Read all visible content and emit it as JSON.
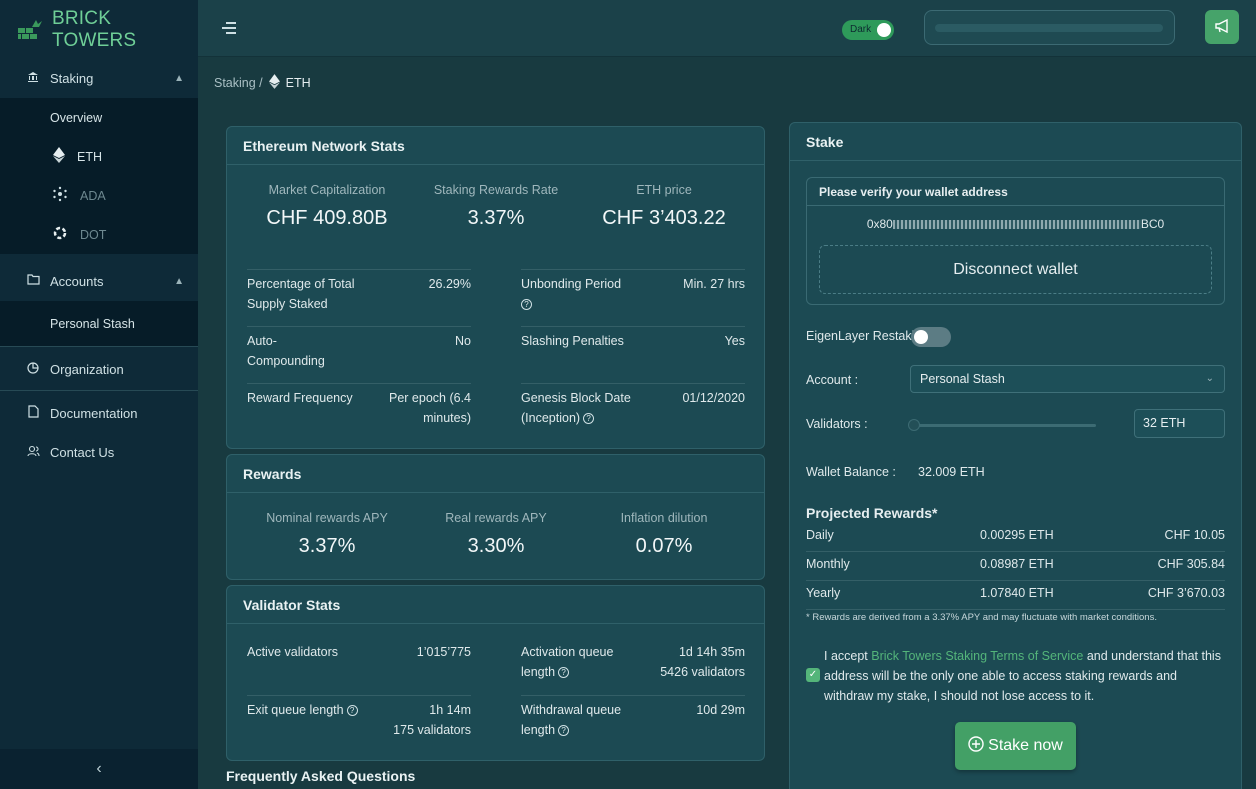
{
  "brand": {
    "name": "BRICK TOWERS"
  },
  "sidebar": {
    "staking": {
      "label": "Staking",
      "items": [
        {
          "label": "Overview"
        },
        {
          "label": "ETH"
        },
        {
          "label": "ADA"
        },
        {
          "label": "DOT"
        }
      ]
    },
    "accounts": {
      "label": "Accounts",
      "items": [
        {
          "label": "Personal Stash"
        }
      ]
    },
    "organization": "Organization",
    "documentation": "Documentation",
    "contact": "Contact Us"
  },
  "topbar": {
    "theme_label": "Dark"
  },
  "breadcrumb": {
    "root": "Staking /",
    "current": "ETH"
  },
  "network_stats": {
    "title": "Ethereum Network Stats",
    "headline": [
      {
        "label": "Market Capitalization",
        "value": "CHF 409.80B"
      },
      {
        "label": "Staking Rewards Rate",
        "value": "3.37%"
      },
      {
        "label": "ETH price",
        "value": "CHF 3’403.22"
      }
    ],
    "left": [
      {
        "k": "Percentage of Total Supply Staked",
        "v": "26.29%"
      },
      {
        "k": "Auto-Compounding",
        "v": "No"
      },
      {
        "k": "Reward Frequency",
        "v": "Per epoch (6.4 minutes)"
      }
    ],
    "right": [
      {
        "k": "Unbonding Period",
        "v": "Min. 27 hrs"
      },
      {
        "k": "Slashing Penalties",
        "v": "Yes"
      },
      {
        "k": "Genesis Block Date (Inception)",
        "v": "01/12/2020"
      }
    ]
  },
  "rewards": {
    "title": "Rewards",
    "items": [
      {
        "label": "Nominal rewards APY",
        "value": "3.37%"
      },
      {
        "label": "Real rewards APY",
        "value": "3.30%"
      },
      {
        "label": "Inflation dilution",
        "value": "0.07%"
      }
    ]
  },
  "validator_stats": {
    "title": "Validator Stats",
    "active": {
      "k": "Active validators",
      "v": "1’015’775"
    },
    "exit": {
      "k": "Exit queue length",
      "v1": "1h 14m",
      "v2": "175 validators"
    },
    "activation": {
      "k1": "Activation queue",
      "k2": "length",
      "v1": "1d 14h 35m",
      "v2": "5426 validators"
    },
    "withdrawal": {
      "k1": "Withdrawal queue",
      "k2": "length",
      "v": "10d 29m"
    }
  },
  "faq_title": "Frequently Asked Questions",
  "stake": {
    "title": "Stake",
    "verify_title": "Please verify your wallet address",
    "address_start": "0x80",
    "address_end": "BC0",
    "disconnect": "Disconnect wallet",
    "eigen_label": "EigenLayer Restaki",
    "account_label": "Account :",
    "account_value": "Personal Stash",
    "validators_label": "Validators :",
    "validators_value": "32 ETH",
    "validators_slider_fraction": 0.0,
    "balance_label": "Wallet Balance :",
    "balance_value": "32.009 ETH",
    "projected_title": "Projected Rewards*",
    "projected": [
      {
        "period": "Daily",
        "eth": "0.00295 ETH",
        "chf": "CHF 10.05"
      },
      {
        "period": "Monthly",
        "eth": "0.08987 ETH",
        "chf": "CHF 305.84"
      },
      {
        "period": "Yearly",
        "eth": "1.07840 ETH",
        "chf": "CHF 3’670.03"
      }
    ],
    "note": "* Rewards are derived from a 3.37% APY and may fluctuate with market conditions.",
    "consent_pre": "I accept ",
    "consent_link": "Brick Towers Staking Terms of Service",
    "consent_post": " and understand that this address will be the only one able to access staking rewards and withdraw my stake, I should not lose access to it.",
    "button": "Stake now"
  },
  "colors": {
    "accent": "#43a066",
    "sidebar": "#0e2a38",
    "card": "#1c4a53"
  }
}
